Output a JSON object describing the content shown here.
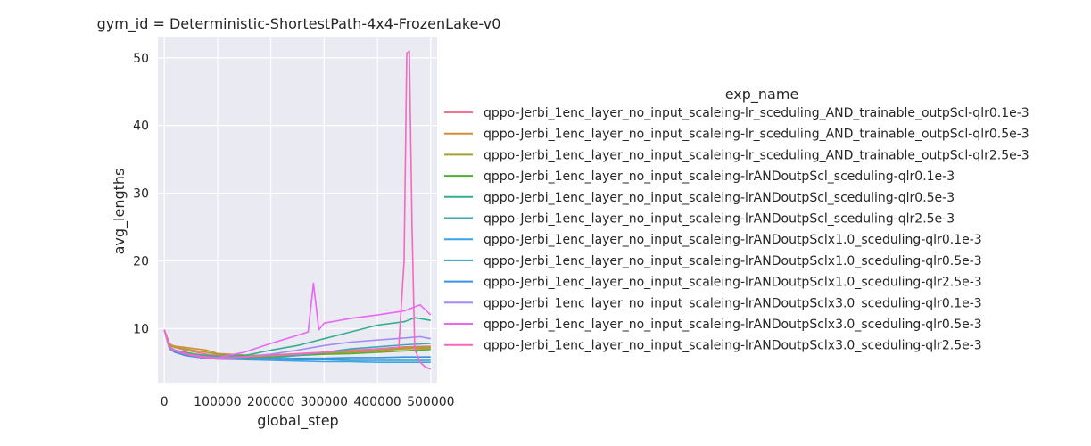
{
  "chart_data": {
    "type": "line",
    "title": "gym_id = Deterministic-ShortestPath-4x4-FrozenLake-v0",
    "xlabel": "global_step",
    "ylabel": "avg_lengths",
    "xlim": [
      -12000,
      512000
    ],
    "ylim": [
      2,
      53
    ],
    "xticks": [
      0,
      100000,
      200000,
      300000,
      400000,
      500000
    ],
    "xtick_labels": [
      "0",
      "100000",
      "200000",
      "300000",
      "400000",
      "500000"
    ],
    "yticks": [
      10,
      20,
      30,
      40,
      50
    ],
    "ytick_labels": [
      "10",
      "20",
      "30",
      "40",
      "50"
    ],
    "grid": true,
    "background": "#eaeaf2",
    "legend": {
      "title": "exp_name",
      "placement": "outside-right"
    },
    "series": [
      {
        "name": "qppo-Jerbi_1enc_layer_no_input_scaleing-lr_sceduling_AND_trainable_outpScl-qlr0.1e-3",
        "color": "#f77189",
        "x": [
          0,
          10000,
          20000,
          40000,
          60000,
          80000,
          100000,
          150000,
          200000,
          250000,
          300000,
          350000,
          400000,
          450000,
          500000
        ],
        "y": [
          9.8,
          7.8,
          7.2,
          6.8,
          6.5,
          6.2,
          6.0,
          5.9,
          6.1,
          6.3,
          6.5,
          6.8,
          7.0,
          7.3,
          7.4
        ]
      },
      {
        "name": "qppo-Jerbi_1enc_layer_no_input_scaleing-lr_sceduling_AND_trainable_outpScl-qlr0.5e-3",
        "color": "#d58c32",
        "x": [
          0,
          10000,
          20000,
          40000,
          60000,
          80000,
          100000,
          150000,
          200000,
          250000,
          300000,
          350000,
          400000,
          450000,
          500000
        ],
        "y": [
          9.8,
          7.6,
          7.4,
          7.2,
          7.0,
          6.8,
          6.3,
          6.1,
          6.0,
          6.1,
          6.3,
          6.5,
          6.7,
          7.0,
          7.1
        ]
      },
      {
        "name": "qppo-Jerbi_1enc_layer_no_input_scaleing-lr_sceduling_AND_trainable_outpScl-qlr2.5e-3",
        "color": "#a4a031",
        "x": [
          0,
          10000,
          20000,
          40000,
          60000,
          80000,
          100000,
          150000,
          200000,
          250000,
          300000,
          350000,
          400000,
          450000,
          500000
        ],
        "y": [
          9.8,
          7.5,
          7.2,
          7.0,
          6.7,
          6.5,
          6.2,
          6.0,
          6.1,
          6.2,
          6.4,
          6.6,
          6.9,
          7.1,
          7.3
        ]
      },
      {
        "name": "qppo-Jerbi_1enc_layer_no_input_scaleing-lrANDoutpScl_sceduling-qlr0.1e-3",
        "color": "#50b131",
        "x": [
          0,
          10000,
          20000,
          40000,
          60000,
          80000,
          100000,
          150000,
          200000,
          250000,
          300000,
          350000,
          400000,
          450000,
          500000
        ],
        "y": [
          9.8,
          7.3,
          6.8,
          6.5,
          6.2,
          6.0,
          5.8,
          5.7,
          5.8,
          6.0,
          6.2,
          6.3,
          6.5,
          6.7,
          6.9
        ]
      },
      {
        "name": "qppo-Jerbi_1enc_layer_no_input_scaleing-lrANDoutpScl_sceduling-qlr0.5e-3",
        "color": "#34ae91",
        "x": [
          0,
          10000,
          20000,
          40000,
          60000,
          80000,
          100000,
          150000,
          200000,
          250000,
          300000,
          350000,
          400000,
          450000,
          470000,
          500000
        ],
        "y": [
          9.8,
          7.2,
          6.8,
          6.4,
          6.1,
          6.0,
          5.9,
          6.0,
          6.8,
          7.5,
          8.5,
          9.5,
          10.5,
          11.0,
          11.6,
          11.2
        ]
      },
      {
        "name": "qppo-Jerbi_1enc_layer_no_input_scaleing-lrANDoutpScl_sceduling-qlr2.5e-3",
        "color": "#37abb4",
        "x": [
          0,
          10000,
          20000,
          40000,
          60000,
          80000,
          100000,
          150000,
          200000,
          250000,
          300000,
          350000,
          400000,
          450000,
          500000
        ],
        "y": [
          9.8,
          7.0,
          6.5,
          6.0,
          5.8,
          5.6,
          5.5,
          5.5,
          5.6,
          6.0,
          6.5,
          7.0,
          7.3,
          7.6,
          7.8
        ]
      },
      {
        "name": "qppo-Jerbi_1enc_layer_no_input_scaleing-lrANDoutpSclx1.0_sceduling-qlr0.1e-3",
        "color": "#3ba3ec",
        "x": [
          0,
          10000,
          20000,
          40000,
          60000,
          80000,
          100000,
          150000,
          200000,
          250000,
          300000,
          350000,
          400000,
          450000,
          500000
        ],
        "y": [
          9.8,
          7.0,
          6.5,
          6.0,
          5.8,
          5.6,
          5.5,
          5.4,
          5.3,
          5.2,
          5.1,
          5.1,
          5.0,
          5.0,
          5.0
        ]
      },
      {
        "name": "qppo-Jerbi_1enc_layer_no_input_scaleing-lrANDoutpSclx1.0_sceduling-qlr0.5e-3",
        "color": "#31a1c4",
        "x": [
          0,
          10000,
          20000,
          40000,
          60000,
          80000,
          100000,
          150000,
          200000,
          250000,
          300000,
          350000,
          400000,
          450000,
          500000
        ],
        "y": [
          9.8,
          7.1,
          6.6,
          6.1,
          5.9,
          5.7,
          5.6,
          5.5,
          5.5,
          5.4,
          5.4,
          5.3,
          5.3,
          5.3,
          5.3
        ]
      },
      {
        "name": "qppo-Jerbi_1enc_layer_no_input_scaleing-lrANDoutpSclx1.0_sceduling-qlr2.5e-3",
        "color": "#3b8fe5",
        "x": [
          0,
          10000,
          20000,
          40000,
          60000,
          80000,
          100000,
          150000,
          200000,
          250000,
          300000,
          350000,
          400000,
          450000,
          500000
        ],
        "y": [
          9.8,
          7.0,
          6.5,
          6.0,
          5.8,
          5.6,
          5.5,
          5.5,
          5.5,
          5.6,
          5.6,
          5.7,
          5.7,
          5.8,
          5.8
        ]
      },
      {
        "name": "qppo-Jerbi_1enc_layer_no_input_scaleing-lrANDoutpSclx3.0_sceduling-qlr0.1e-3",
        "color": "#a48cf4",
        "x": [
          0,
          10000,
          20000,
          40000,
          60000,
          80000,
          100000,
          150000,
          200000,
          250000,
          300000,
          350000,
          400000,
          450000,
          480000,
          500000
        ],
        "y": [
          9.8,
          7.2,
          6.7,
          6.2,
          5.9,
          5.7,
          5.6,
          5.8,
          6.2,
          6.8,
          7.5,
          8.0,
          8.3,
          8.6,
          8.8,
          8.5
        ]
      },
      {
        "name": "qppo-Jerbi_1enc_layer_no_input_scaleing-lrANDoutpSclx3.0_sceduling-qlr0.5e-3",
        "color": "#e867f4",
        "x": [
          0,
          10000,
          20000,
          40000,
          60000,
          80000,
          100000,
          150000,
          200000,
          250000,
          270000,
          280000,
          290000,
          300000,
          350000,
          400000,
          450000,
          480000,
          500000
        ],
        "y": [
          9.8,
          7.2,
          6.8,
          6.3,
          6.0,
          5.8,
          5.7,
          6.5,
          7.8,
          9.0,
          9.5,
          16.7,
          9.8,
          10.8,
          11.5,
          12.0,
          12.6,
          13.5,
          12.0
        ]
      },
      {
        "name": "qppo-Jerbi_1enc_layer_no_input_scaleing-lrANDoutpSclx3.0_sceduling-qlr2.5e-3",
        "color": "#f668c2",
        "x": [
          0,
          10000,
          20000,
          40000,
          60000,
          80000,
          100000,
          150000,
          200000,
          250000,
          300000,
          350000,
          400000,
          440000,
          450000,
          455000,
          460000,
          465000,
          470000,
          480000,
          490000,
          500000
        ],
        "y": [
          9.8,
          7.1,
          6.7,
          6.2,
          5.9,
          5.7,
          5.6,
          5.8,
          6.0,
          6.2,
          6.5,
          6.7,
          7.0,
          7.2,
          20.0,
          50.7,
          51.0,
          25.0,
          7.0,
          5.0,
          4.3,
          4.0
        ]
      }
    ]
  }
}
